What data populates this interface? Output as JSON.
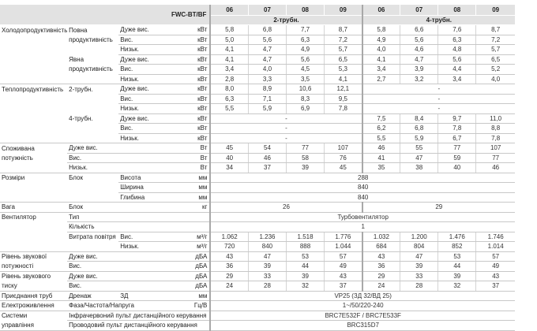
{
  "header": {
    "model": "FWC-BT/BF",
    "sizes": [
      "06",
      "07",
      "08",
      "09",
      "06",
      "07",
      "08",
      "09"
    ],
    "groups": [
      "2-трубн.",
      "4-трубн."
    ]
  },
  "rows": [
    {
      "c1": "Холодопродуктивність",
      "c2": "Повна",
      "c3": "Дуже вис.",
      "unit": "кВт",
      "values": [
        "5,8",
        "6,8",
        "7,7",
        "8,7",
        "5,8",
        "6,6",
        "7,6",
        "8,7"
      ]
    },
    {
      "c1": "",
      "c2": "продуктивність",
      "c3": "Вис.",
      "unit": "кВт",
      "values": [
        "5,0",
        "5,6",
        "6,3",
        "7,2",
        "4,9",
        "5,6",
        "6,3",
        "7,2"
      ]
    },
    {
      "c1": "",
      "c2": "",
      "c3": "Низьк.",
      "unit": "кВт",
      "values": [
        "4,1",
        "4,7",
        "4,9",
        "5,7",
        "4,0",
        "4,6",
        "4,8",
        "5,7"
      ]
    },
    {
      "c1": "",
      "c2": "Явна",
      "c3": "Дуже вис.",
      "unit": "кВт",
      "values": [
        "4,1",
        "4,7",
        "5,6",
        "6,5",
        "4,1",
        "4,7",
        "5,6",
        "6,5"
      ]
    },
    {
      "c1": "",
      "c2": "продуктивність",
      "c3": "Вис.",
      "unit": "кВт",
      "values": [
        "3,4",
        "4,0",
        "4,5",
        "5,3",
        "3,4",
        "3,9",
        "4,4",
        "5,2"
      ]
    },
    {
      "c1": "",
      "c2": "",
      "c3": "Низьк.",
      "unit": "кВт",
      "values": [
        "2,8",
        "3,3",
        "3,5",
        "4,1",
        "2,7",
        "3,2",
        "3,4",
        "4,0"
      ],
      "group_end": true
    },
    {
      "c1": "Теплопродуктивність",
      "c2": "2-трубн.",
      "c3": "Дуже вис.",
      "unit": "кВт",
      "values": [
        "8,0",
        "8,9",
        "10,6",
        "12,1",
        {
          "v": "-",
          "span": 4
        }
      ]
    },
    {
      "c1": "",
      "c2": "",
      "c3": "Вис.",
      "unit": "кВт",
      "values": [
        "6,3",
        "7,1",
        "8,3",
        "9,5",
        {
          "v": "-",
          "span": 4
        }
      ]
    },
    {
      "c1": "",
      "c2": "",
      "c3": "Низьк.",
      "unit": "кВт",
      "values": [
        "5,5",
        "5,9",
        "6,9",
        "7,8",
        {
          "v": "-",
          "span": 4
        }
      ]
    },
    {
      "c1": "",
      "c2": "4-трубн.",
      "c3": "Дуже вис.",
      "unit": "кВт",
      "values": [
        {
          "v": "-",
          "span": 4
        },
        "7,5",
        "8,4",
        "9,7",
        "11,0"
      ]
    },
    {
      "c1": "",
      "c2": "",
      "c3": "Вис.",
      "unit": "кВт",
      "values": [
        {
          "v": "-",
          "span": 4
        },
        "6,2",
        "6,8",
        "7,8",
        "8,8"
      ]
    },
    {
      "c1": "",
      "c2": "",
      "c3": "Низьк.",
      "unit": "кВт",
      "values": [
        {
          "v": "-",
          "span": 4
        },
        "5,5",
        "5,9",
        "6,7",
        "7,8"
      ],
      "group_end": true
    },
    {
      "c1": "Споживана",
      "c2": "Дуже вис.",
      "unit": "Вт",
      "values": [
        "45",
        "54",
        "77",
        "107",
        "46",
        "55",
        "77",
        "107"
      ]
    },
    {
      "c1": "потужність",
      "c2": "Вис.",
      "unit": "Вт",
      "values": [
        "40",
        "46",
        "58",
        "76",
        "41",
        "47",
        "59",
        "77"
      ]
    },
    {
      "c1": "",
      "c2": "Низьк.",
      "unit": "Вт",
      "values": [
        "34",
        "37",
        "39",
        "45",
        "35",
        "38",
        "40",
        "46"
      ],
      "group_end": true
    },
    {
      "c1": "Розміри",
      "c2": "Блок",
      "c3": "Висота",
      "unit": "мм",
      "values": [
        {
          "v": "288",
          "span": 8
        }
      ]
    },
    {
      "c1": "",
      "c2": "",
      "c3": "Ширина",
      "unit": "мм",
      "values": [
        {
          "v": "840",
          "span": 8
        }
      ]
    },
    {
      "c1": "",
      "c2": "",
      "c3": "Глибина",
      "unit": "мм",
      "values": [
        {
          "v": "840",
          "span": 8
        }
      ],
      "group_end": true
    },
    {
      "c1": "Вага",
      "c2": "Блок",
      "unit": "кг",
      "values": [
        {
          "v": "26",
          "span": 4
        },
        {
          "v": "29",
          "span": 4
        }
      ],
      "group_end": true
    },
    {
      "c1": "Вентилятор",
      "c2": "Тип",
      "unit": "",
      "values": [
        {
          "v": "Турбовентилятор",
          "span": 8
        }
      ]
    },
    {
      "c1": "",
      "c2": "Кількість",
      "unit": "",
      "values": [
        {
          "v": "1",
          "span": 8
        }
      ]
    },
    {
      "c1": "",
      "c2": "Витрата повітря",
      "c3": "Вис.",
      "unit": "м³/г",
      "values": [
        "1.062",
        "1.236",
        "1.518",
        "1.776",
        "1.032",
        "1.200",
        "1.476",
        "1.746"
      ]
    },
    {
      "c1": "",
      "c2": "",
      "c3": "Низьк.",
      "unit": "м³/г",
      "values": [
        "720",
        "840",
        "888",
        "1.044",
        "684",
        "804",
        "852",
        "1.014"
      ],
      "group_end": true
    },
    {
      "c1": "Рівень звукової",
      "c2": "Дуже вис.",
      "unit": "дБА",
      "values": [
        "43",
        "47",
        "53",
        "57",
        "43",
        "47",
        "53",
        "57"
      ]
    },
    {
      "c1": "потужності",
      "c2": "Вис.",
      "unit": "дБА",
      "values": [
        "36",
        "39",
        "44",
        "49",
        "36",
        "39",
        "44",
        "49"
      ],
      "group_end": true
    },
    {
      "c1": "Рівень звукового",
      "c2": "Дуже вис.",
      "unit": "дБА",
      "values": [
        "29",
        "33",
        "39",
        "43",
        "29",
        "33",
        "39",
        "43"
      ]
    },
    {
      "c1": "тиску",
      "c2": "Вис.",
      "unit": "дБА",
      "values": [
        "24",
        "28",
        "32",
        "37",
        "24",
        "28",
        "32",
        "37"
      ],
      "group_end": true
    },
    {
      "c1": "Приєднання труб",
      "c2": "Дренаж",
      "c3": "ЗД",
      "unit": "мм",
      "values": [
        {
          "v": "VP25 (ЗД 32/ВД 25)",
          "span": 8
        }
      ],
      "group_end": true
    },
    {
      "c1": "Електроживлення",
      "c2": "Фаза/Частота/Напруга",
      "unit": "Гц/В",
      "values": [
        {
          "v": "1~/50/220-240",
          "span": 8
        }
      ],
      "group_end": true
    },
    {
      "c1": "Системи",
      "c2": "Інфрачервоний пульт дистанційного керування",
      "values": [
        {
          "v": "BRC7E532F / BRC7E533F",
          "span": 8
        }
      ]
    },
    {
      "c1": "управління",
      "c2": "Проводовий пульт дистанційного керування",
      "values": [
        {
          "v": "BRC315D7",
          "span": 8
        }
      ],
      "group_end": true
    }
  ]
}
